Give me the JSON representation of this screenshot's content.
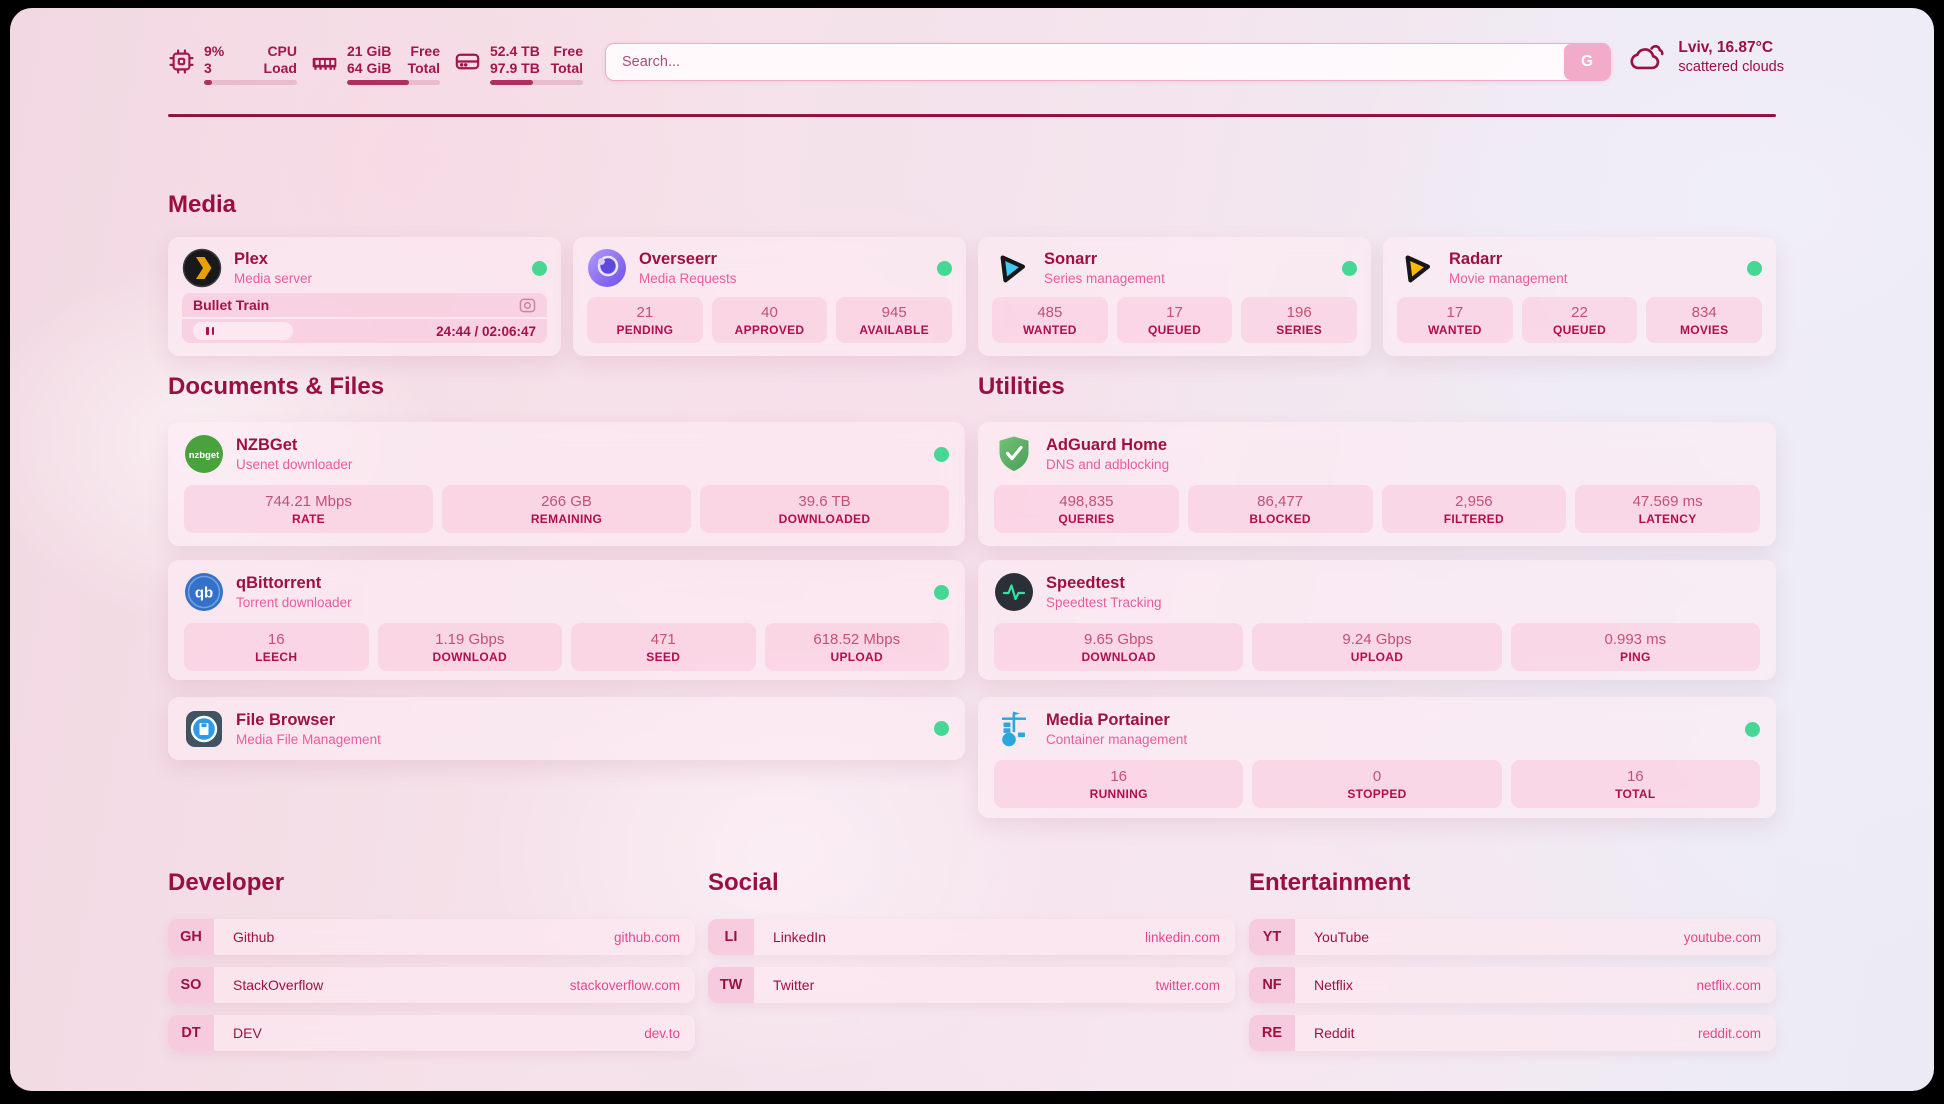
{
  "header": {
    "cpu": {
      "top_value": "9%",
      "top_label": "CPU",
      "bottom_value": "3",
      "bottom_label": "Load",
      "progress_percent": 9
    },
    "memory": {
      "top_value": "21 GiB",
      "top_label": "Free",
      "bottom_value": "64 GiB",
      "bottom_label": "Total",
      "progress_percent": 67
    },
    "disk": {
      "top_value": "52.4 TB",
      "top_label": "Free",
      "bottom_value": "97.9 TB",
      "bottom_label": "Total",
      "progress_percent": 46
    },
    "search": {
      "placeholder": "Search...",
      "button_label": "G"
    },
    "weather": {
      "location": "Lviv, 16.87°C",
      "condition": "scattered clouds"
    }
  },
  "media": {
    "title": "Media",
    "plex": {
      "name": "Plex",
      "subtitle": "Media server",
      "status": "online",
      "now_playing": {
        "title": "Bullet Train",
        "time": "24:44 / 02:06:47"
      }
    },
    "overseerr": {
      "name": "Overseerr",
      "subtitle": "Media Requests",
      "status": "online",
      "stats": [
        {
          "value": "21",
          "label": "PENDING"
        },
        {
          "value": "40",
          "label": "APPROVED"
        },
        {
          "value": "945",
          "label": "AVAILABLE"
        }
      ]
    },
    "sonarr": {
      "name": "Sonarr",
      "subtitle": "Series management",
      "status": "online",
      "stats": [
        {
          "value": "485",
          "label": "WANTED"
        },
        {
          "value": "17",
          "label": "QUEUED"
        },
        {
          "value": "196",
          "label": "SERIES"
        }
      ]
    },
    "radarr": {
      "name": "Radarr",
      "subtitle": "Movie management",
      "status": "online",
      "stats": [
        {
          "value": "17",
          "label": "WANTED"
        },
        {
          "value": "22",
          "label": "QUEUED"
        },
        {
          "value": "834",
          "label": "MOVIES"
        }
      ]
    }
  },
  "documents": {
    "title": "Documents & Files",
    "nzbget": {
      "name": "NZBGet",
      "subtitle": "Usenet downloader",
      "status": "online",
      "stats": [
        {
          "value": "744.21 Mbps",
          "label": "RATE"
        },
        {
          "value": "266 GB",
          "label": "REMAINING"
        },
        {
          "value": "39.6 TB",
          "label": "DOWNLOADED"
        }
      ]
    },
    "qbittorrent": {
      "name": "qBittorrent",
      "subtitle": "Torrent downloader",
      "status": "online",
      "stats": [
        {
          "value": "16",
          "label": "LEECH"
        },
        {
          "value": "1.19 Gbps",
          "label": "DOWNLOAD"
        },
        {
          "value": "471",
          "label": "SEED"
        },
        {
          "value": "618.52 Mbps",
          "label": "UPLOAD"
        }
      ]
    },
    "filebrowser": {
      "name": "File Browser",
      "subtitle": "Media File Management",
      "status": "online"
    }
  },
  "utilities": {
    "title": "Utilities",
    "adguard": {
      "name": "AdGuard Home",
      "subtitle": "DNS and adblocking",
      "stats": [
        {
          "value": "498,835",
          "label": "QUERIES"
        },
        {
          "value": "86,477",
          "label": "BLOCKED"
        },
        {
          "value": "2,956",
          "label": "FILTERED"
        },
        {
          "value": "47.569 ms",
          "label": "LATENCY"
        }
      ]
    },
    "speedtest": {
      "name": "Speedtest",
      "subtitle": "Speedtest Tracking",
      "stats": [
        {
          "value": "9.65 Gbps",
          "label": "DOWNLOAD"
        },
        {
          "value": "9.24 Gbps",
          "label": "UPLOAD"
        },
        {
          "value": "0.993 ms",
          "label": "PING"
        }
      ]
    },
    "portainer": {
      "name": "Media Portainer",
      "subtitle": "Container management",
      "status": "online",
      "stats": [
        {
          "value": "16",
          "label": "RUNNING"
        },
        {
          "value": "0",
          "label": "STOPPED"
        },
        {
          "value": "16",
          "label": "TOTAL"
        }
      ]
    }
  },
  "bookmarks": {
    "developer": {
      "title": "Developer",
      "links": [
        {
          "abbr": "GH",
          "name": "Github",
          "url": "github.com"
        },
        {
          "abbr": "SO",
          "name": "StackOverflow",
          "url": "stackoverflow.com"
        },
        {
          "abbr": "DT",
          "name": "DEV",
          "url": "dev.to"
        }
      ]
    },
    "social": {
      "title": "Social",
      "links": [
        {
          "abbr": "LI",
          "name": "LinkedIn",
          "url": "linkedin.com"
        },
        {
          "abbr": "TW",
          "name": "Twitter",
          "url": "twitter.com"
        }
      ]
    },
    "entertainment": {
      "title": "Entertainment",
      "links": [
        {
          "abbr": "YT",
          "name": "YouTube",
          "url": "youtube.com"
        },
        {
          "abbr": "NF",
          "name": "Netflix",
          "url": "netflix.com"
        },
        {
          "abbr": "RE",
          "name": "Reddit",
          "url": "reddit.com"
        }
      ]
    }
  },
  "icons": {
    "nzbget_logo_text": "nzbget",
    "qbittorrent_logo_text": "qb"
  },
  "colors": {
    "accent_dark": "#9a0f42",
    "accent_pink": "#ea5c9e",
    "status_online": "#46d795",
    "progress_fill": "#b02e60",
    "card_bg": "#fdecf3",
    "url_link": "#e4478c"
  }
}
